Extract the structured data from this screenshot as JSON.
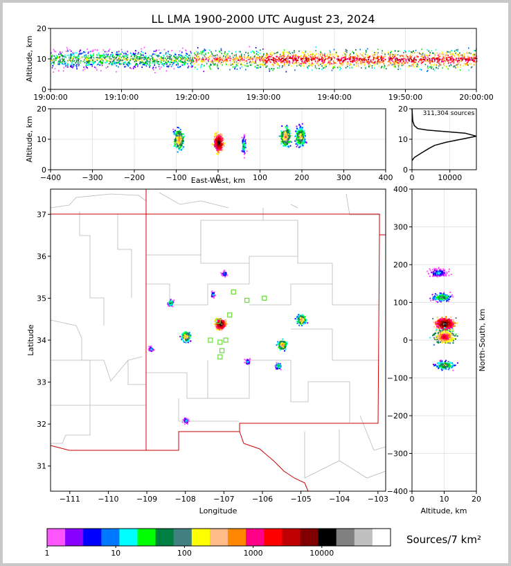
{
  "title": "LL LMA 1900-2000 UTC August 23, 2024",
  "colors": {
    "frame": "#c8c8c8",
    "state_border": "#cc0000",
    "county_lines": "#b8b8b8",
    "station_marker": "#66dd33",
    "colormap": [
      "#ff55ff",
      "#8800ff",
      "#0000ff",
      "#0077ff",
      "#00ffff",
      "#00ff00",
      "#008040",
      "#408080",
      "#ffff00",
      "#ffbb88",
      "#ff8800",
      "#ff0088",
      "#ff0000",
      "#c00000",
      "#800000",
      "#000000",
      "#808080",
      "#c0c0c0",
      "#ffffff"
    ]
  },
  "chart_data": [
    {
      "id": "time_height",
      "type": "heatmap",
      "ylabel": "Altitude, km",
      "xlim": [
        "19:00:00",
        "20:00:00"
      ],
      "ylim": [
        0,
        20
      ],
      "xticks": [
        "19:00:00",
        "19:10:00",
        "19:20:00",
        "19:30:00",
        "19:40:00",
        "19:50:00",
        "20:00:00"
      ],
      "yticks": [
        "0",
        "10",
        "20"
      ],
      "activity_by_10min": [
        {
          "start": "19:00",
          "level": "moderate"
        },
        {
          "start": "19:20",
          "level": "high"
        },
        {
          "start": "19:30",
          "level": "highest"
        }
      ],
      "dominant_altitude_km": 10
    },
    {
      "id": "ew_height",
      "type": "heatmap",
      "xlabel": "East-West, km",
      "ylabel": "Altitude, km",
      "xlim": [
        -400,
        400
      ],
      "ylim": [
        0,
        20
      ],
      "xticks": [
        "−400",
        "−300",
        "−200",
        "−100",
        "0",
        "100",
        "200",
        "300",
        "400"
      ],
      "yticks": [
        "0",
        "10",
        "20"
      ],
      "clusters": [
        {
          "x_km": -95,
          "alt_km": 10
        },
        {
          "x_km": 0,
          "alt_km": 9
        },
        {
          "x_km": 60,
          "alt_km": 8
        },
        {
          "x_km": 160,
          "alt_km": 11
        },
        {
          "x_km": 195,
          "alt_km": 11
        }
      ]
    },
    {
      "id": "altitude_histogram",
      "type": "line",
      "annotation": "311,304 sources",
      "xlim": [
        0,
        17000
      ],
      "ylim": [
        0,
        20
      ],
      "xticks": [
        "0",
        "10000"
      ],
      "yticks": [
        "0",
        "10",
        "20"
      ],
      "x": [
        0,
        600,
        2500,
        4500,
        6000,
        9000,
        13000,
        17000,
        14000,
        9000,
        4000,
        1500,
        600,
        200,
        0
      ],
      "y": [
        3,
        4,
        5.5,
        7,
        8,
        9,
        10,
        11,
        12,
        12.5,
        13,
        13.5,
        14.5,
        16,
        20
      ]
    },
    {
      "id": "plan_view",
      "type": "heatmap",
      "xlabel": "Longitude",
      "ylabel": "Latitude",
      "xlim": [
        -111.5,
        -102.8
      ],
      "ylim": [
        30.4,
        37.6
      ],
      "xticks": [
        "−111",
        "−110",
        "−109",
        "−108",
        "−107",
        "−106",
        "−105",
        "−104",
        "−103"
      ],
      "yticks": [
        "31",
        "32",
        "33",
        "34",
        "35",
        "36",
        "37"
      ],
      "stations": [
        {
          "lon": -107.15,
          "lat": 34.45
        },
        {
          "lon": -106.85,
          "lat": 34.6
        },
        {
          "lon": -106.75,
          "lat": 35.15
        },
        {
          "lon": -106.4,
          "lat": 34.95
        },
        {
          "lon": -105.95,
          "lat": 35.0
        },
        {
          "lon": -107.35,
          "lat": 34.0
        },
        {
          "lon": -107.1,
          "lat": 33.95
        },
        {
          "lon": -106.95,
          "lat": 34.0
        },
        {
          "lon": -107.05,
          "lat": 33.75
        },
        {
          "lon": -107.1,
          "lat": 33.6
        }
      ],
      "source_regions": [
        {
          "lon": -107.1,
          "lat": 34.4,
          "level": "max"
        },
        {
          "lon": -108.0,
          "lat": 34.1,
          "level": "high"
        },
        {
          "lon": -108.4,
          "lat": 34.9,
          "level": "moderate"
        },
        {
          "lon": -107.3,
          "lat": 35.1,
          "level": "low"
        },
        {
          "lon": -107.0,
          "lat": 35.6,
          "level": "low"
        },
        {
          "lon": -105.0,
          "lat": 34.5,
          "level": "high"
        },
        {
          "lon": -105.5,
          "lat": 33.9,
          "level": "high"
        },
        {
          "lon": -105.6,
          "lat": 33.4,
          "level": "moderate"
        },
        {
          "lon": -106.4,
          "lat": 33.5,
          "level": "low"
        },
        {
          "lon": -108.9,
          "lat": 33.8,
          "level": "low"
        },
        {
          "lon": -108.0,
          "lat": 32.1,
          "level": "low"
        }
      ]
    },
    {
      "id": "ns_height",
      "type": "heatmap",
      "xlabel": "Altitude, km",
      "ylabel": "North-South, km",
      "xlim": [
        0,
        20
      ],
      "ylim": [
        -400,
        400
      ],
      "xticks": [
        "0",
        "10",
        "20"
      ],
      "yticks": [
        "−400",
        "−300",
        "−200",
        "−100",
        "0",
        "100",
        "200",
        "300",
        "400"
      ],
      "clusters": [
        {
          "alt_km": 10,
          "y_km": 45
        },
        {
          "alt_km": 10,
          "y_km": 10
        },
        {
          "alt_km": 10,
          "y_km": -65
        },
        {
          "alt_km": 9,
          "y_km": 115
        },
        {
          "alt_km": 8,
          "y_km": 180
        }
      ]
    },
    {
      "id": "colorbar",
      "type": "heatmap",
      "label": "Sources/7 km²",
      "ticks": [
        "1",
        "10",
        "100",
        "1000",
        "10000"
      ],
      "range": [
        1,
        100000
      ]
    }
  ]
}
